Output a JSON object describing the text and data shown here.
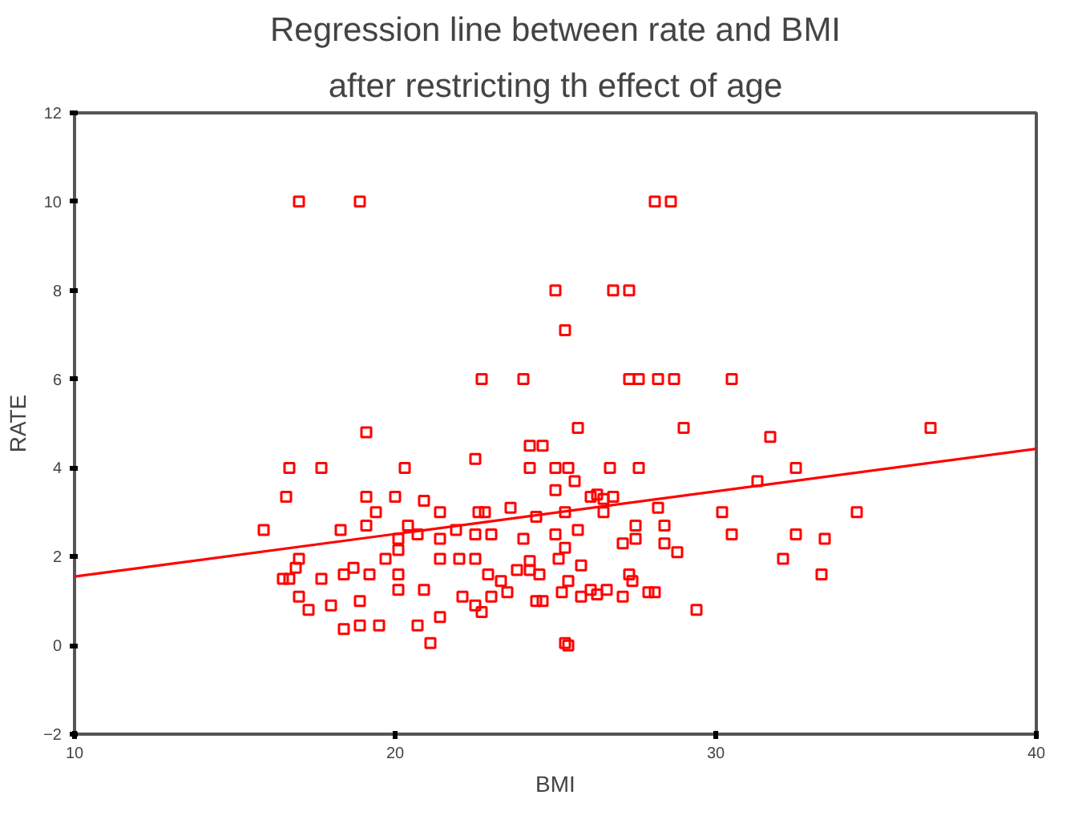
{
  "chart_data": {
    "type": "scatter",
    "title": "Regression line between rate and BMI",
    "subtitle": "after restricting th effect of age",
    "xlabel": "BMI",
    "ylabel": "RATE",
    "xlim": [
      10,
      40
    ],
    "ylim": [
      -2,
      12
    ],
    "xticks": [
      10,
      20,
      30,
      40
    ],
    "yticks": [
      -2,
      0,
      2,
      4,
      6,
      8,
      10,
      12
    ],
    "grid": false,
    "series": [
      {
        "marker": "square",
        "color": "#ff0000",
        "x": [
          17.0,
          18.9,
          25.0,
          25.3,
          22.7,
          24.0,
          19.1,
          16.7,
          17.7,
          20.3,
          22.5,
          24.2,
          24.6,
          24.2,
          25.0,
          16.6,
          19.1,
          20.0,
          20.9,
          19.4,
          21.4,
          22.6,
          22.8,
          23.6,
          25.0,
          24.4,
          15.9,
          18.3,
          19.1,
          20.4,
          20.7,
          20.1,
          21.4,
          21.9,
          22.5,
          23.0,
          24.0,
          25.0,
          17.0,
          19.7,
          20.1,
          21.4,
          22.0,
          22.5,
          24.2,
          25.1,
          16.9,
          16.5,
          16.7,
          17.7,
          18.4,
          18.7,
          19.2,
          20.1,
          22.9,
          23.3,
          23.8,
          24.2,
          24.5,
          17.0,
          17.3,
          18.0,
          18.9,
          20.1,
          20.9,
          22.1,
          23.0,
          23.5,
          24.4,
          24.6,
          25.2,
          22.5,
          22.7,
          18.4,
          18.9,
          19.5,
          20.7,
          21.4,
          21.1,
          25.3,
          28.1,
          28.6,
          26.8,
          27.3,
          27.3,
          27.6,
          28.2,
          28.7,
          30.5,
          25.7,
          29.0,
          36.7,
          31.7,
          25.4,
          25.6,
          26.7,
          27.6,
          32.5,
          31.3,
          26.1,
          26.3,
          26.5,
          26.8,
          28.2,
          26.5,
          25.3,
          30.2,
          34.4,
          25.7,
          27.5,
          27.5,
          28.4,
          30.5,
          32.5,
          33.4,
          25.3,
          27.1,
          28.4,
          28.8,
          32.1,
          25.8,
          27.3,
          27.4,
          33.3,
          25.4,
          25.8,
          26.1,
          26.3,
          26.6,
          27.1,
          27.9,
          28.1,
          29.4,
          25.4
        ],
        "values": [
          10,
          10,
          8.0,
          7.1,
          6.0,
          6.0,
          4.8,
          4.0,
          4.0,
          4.0,
          4.2,
          4.5,
          4.5,
          4.0,
          4.0,
          3.35,
          3.35,
          3.35,
          3.26,
          3.0,
          3.0,
          3.0,
          3.0,
          3.1,
          3.5,
          2.9,
          2.6,
          2.6,
          2.7,
          2.7,
          2.5,
          2.4,
          2.4,
          2.6,
          2.5,
          2.5,
          2.4,
          2.5,
          1.95,
          1.95,
          2.15,
          1.95,
          1.95,
          1.95,
          1.9,
          1.95,
          1.75,
          1.5,
          1.5,
          1.5,
          1.6,
          1.75,
          1.6,
          1.6,
          1.6,
          1.45,
          1.7,
          1.7,
          1.6,
          1.1,
          0.8,
          0.9,
          1.0,
          1.25,
          1.25,
          1.1,
          1.1,
          1.2,
          1.0,
          1.0,
          1.2,
          0.9,
          0.75,
          0.37,
          0.45,
          0.45,
          0.45,
          0.64,
          0.05,
          0.05,
          10,
          10,
          8.0,
          8.0,
          6.0,
          6.0,
          6.0,
          6.0,
          6.0,
          4.9,
          4.9,
          4.9,
          4.7,
          4.0,
          3.7,
          4.0,
          4.0,
          4.0,
          3.7,
          3.35,
          3.4,
          3.3,
          3.35,
          3.1,
          3.0,
          3.0,
          3.0,
          3.0,
          2.6,
          2.7,
          2.4,
          2.7,
          2.5,
          2.5,
          2.4,
          2.2,
          2.3,
          2.3,
          2.1,
          1.95,
          1.8,
          1.6,
          1.45,
          1.6,
          1.45,
          1.1,
          1.25,
          1.15,
          1.25,
          1.1,
          1.2,
          1.2,
          0.8,
          0.0
        ]
      },
      {
        "type": "line",
        "color": "#ff0000",
        "x": [
          10,
          40
        ],
        "values": [
          1.55,
          4.43
        ]
      }
    ]
  }
}
